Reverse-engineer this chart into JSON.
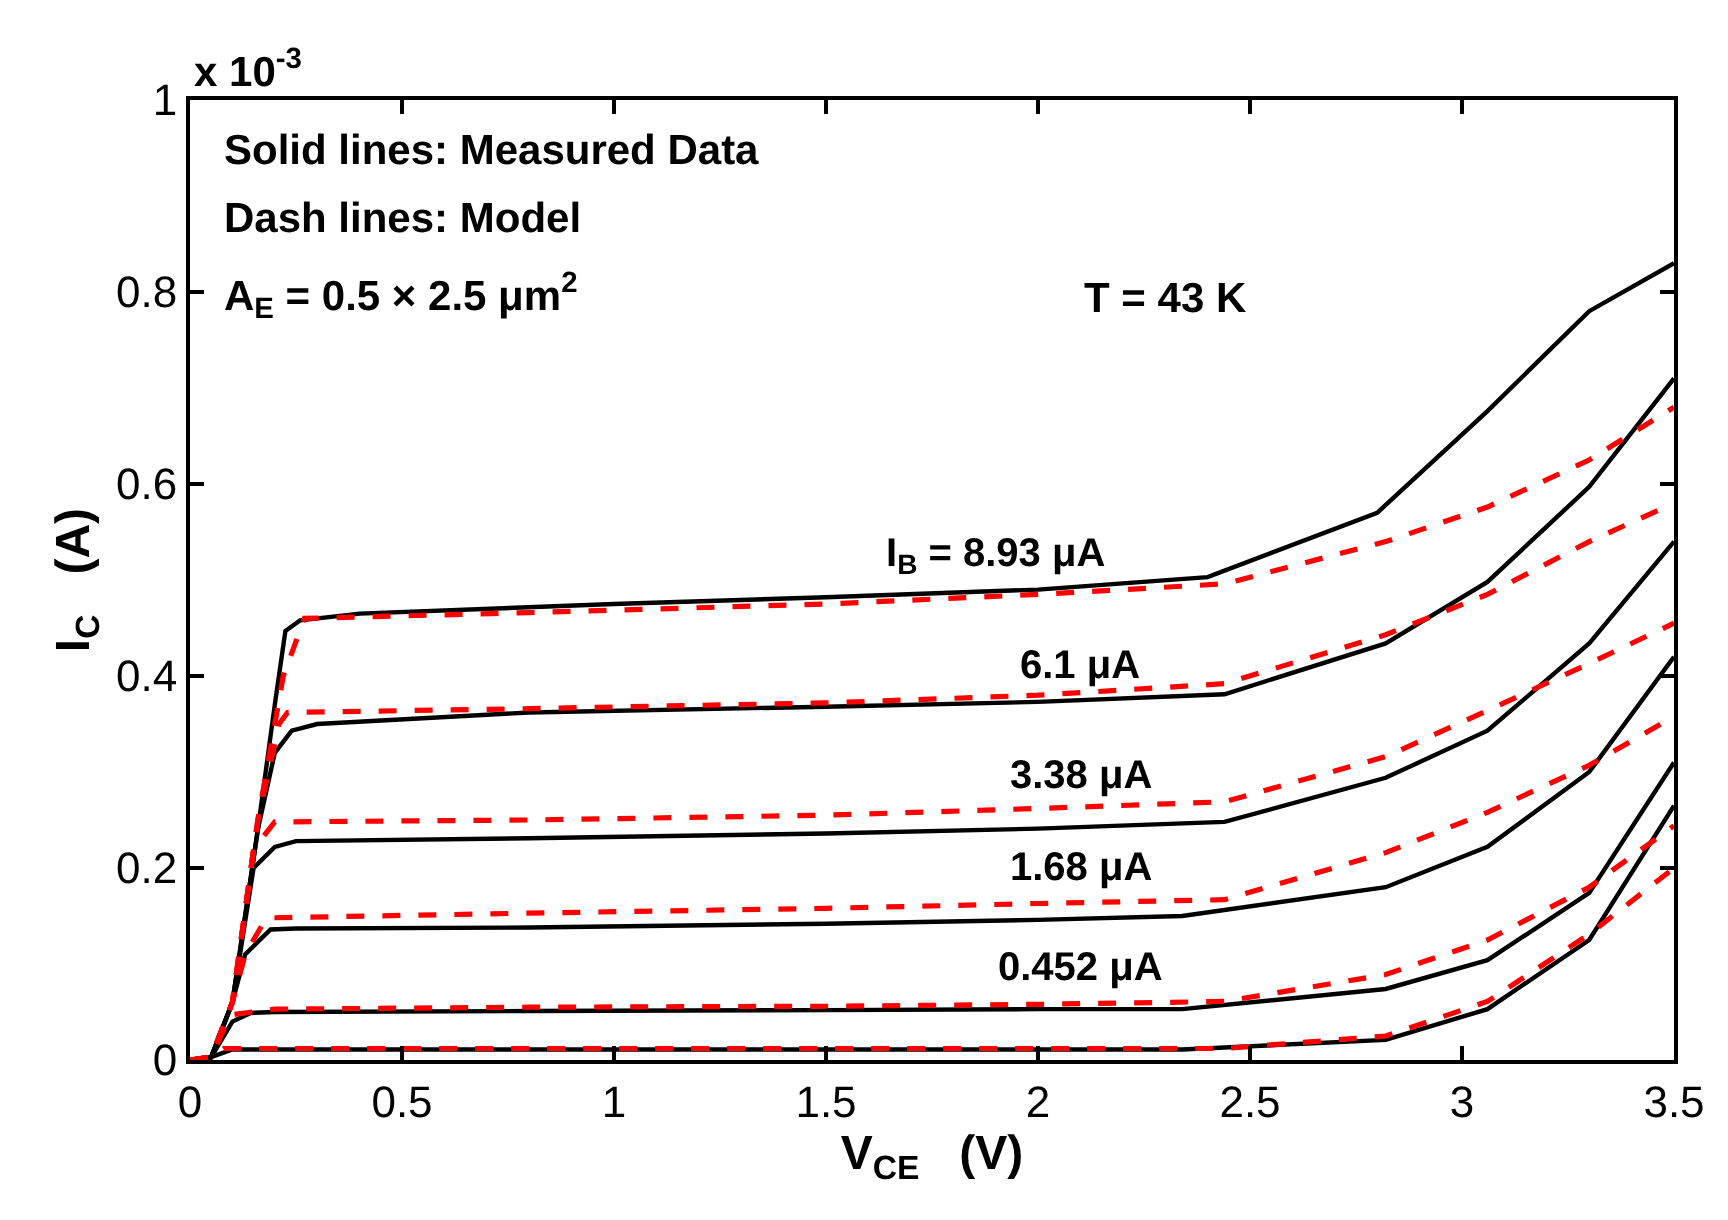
{
  "chart_data": {
    "type": "line",
    "xlabel": "V$_{CE}$   (V)",
    "ylabel": "I$_{C}$   (A)",
    "xlim": [
      0,
      3.5
    ],
    "xticks": [
      0,
      0.5,
      1,
      1.5,
      2,
      2.5,
      3,
      3.5
    ],
    "ylim": [
      0,
      1
    ],
    "yticks": [
      0,
      0.2,
      0.4,
      0.6,
      0.8,
      1
    ],
    "marker": "none",
    "series": [
      {
        "color": "#000000",
        "line_style": "solid",
        "x": [
          0,
          0.05,
          0.1,
          0.16,
          0.2,
          0.225,
          0.26,
          0.4,
          1,
          1.5,
          2,
          2.4,
          2.8,
          3.06,
          3.3,
          3.5
        ],
        "values": [
          0,
          0.003,
          0.06,
          0.24,
          0.37,
          0.447,
          0.458,
          0.465,
          0.475,
          0.482,
          0.49,
          0.503,
          0.57,
          0.676,
          0.78,
          0.83
        ]
      },
      {
        "color": "#000000",
        "line_style": "solid",
        "x": [
          0,
          0.05,
          0.1,
          0.16,
          0.2,
          0.24,
          0.3,
          0.8,
          1.5,
          2,
          2.44,
          2.82,
          3.06,
          3.3,
          3.5
        ],
        "values": [
          0,
          0.003,
          0.06,
          0.24,
          0.32,
          0.343,
          0.35,
          0.362,
          0.368,
          0.373,
          0.381,
          0.434,
          0.498,
          0.597,
          0.71
        ]
      },
      {
        "color": "#000000",
        "line_style": "solid",
        "x": [
          0,
          0.05,
          0.1,
          0.15,
          0.2,
          0.25,
          0.8,
          1.5,
          2,
          2.44,
          2.82,
          3.06,
          3.3,
          3.5
        ],
        "values": [
          0,
          0.003,
          0.06,
          0.2,
          0.222,
          0.228,
          0.231,
          0.236,
          0.241,
          0.248,
          0.294,
          0.343,
          0.434,
          0.54
        ]
      },
      {
        "color": "#000000",
        "line_style": "solid",
        "x": [
          0,
          0.05,
          0.1,
          0.13,
          0.19,
          0.25,
          0.8,
          1.5,
          2,
          2.34,
          2.82,
          3.06,
          3.3,
          3.5
        ],
        "values": [
          0,
          0.003,
          0.06,
          0.11,
          0.136,
          0.137,
          0.138,
          0.142,
          0.146,
          0.15,
          0.18,
          0.222,
          0.3,
          0.42
        ]
      },
      {
        "color": "#000000",
        "line_style": "solid",
        "x": [
          0,
          0.05,
          0.1,
          0.143,
          0.2,
          0.8,
          1.5,
          2,
          2.34,
          2.82,
          3.06,
          3.3,
          3.5
        ],
        "values": [
          0,
          0.003,
          0.04,
          0.049,
          0.05,
          0.051,
          0.052,
          0.053,
          0.053,
          0.074,
          0.104,
          0.174,
          0.31
        ]
      },
      {
        "color": "#000000",
        "line_style": "solid",
        "x": [
          0,
          0.05,
          0.1,
          0.15,
          0.8,
          1.5,
          2,
          2.34,
          2.82,
          3.06,
          3.3,
          3.5
        ],
        "values": [
          0,
          0.003,
          0.011,
          0.011,
          0.011,
          0.011,
          0.011,
          0.011,
          0.021,
          0.053,
          0.125,
          0.265
        ]
      },
      {
        "color": "#ff0000",
        "line_style": "dashed",
        "x": [
          0,
          0.05,
          0.1,
          0.16,
          0.22,
          0.27,
          0.8,
          1.5,
          2,
          2.44,
          2.82,
          3.06,
          3.3,
          3.5
        ],
        "values": [
          0,
          0.003,
          0.06,
          0.25,
          0.4,
          0.46,
          0.466,
          0.475,
          0.485,
          0.496,
          0.54,
          0.576,
          0.625,
          0.68
        ]
      },
      {
        "color": "#ff0000",
        "line_style": "dashed",
        "x": [
          0,
          0.05,
          0.1,
          0.16,
          0.21,
          0.23,
          0.8,
          1.5,
          2,
          2.44,
          2.82,
          3.06,
          3.3,
          3.5
        ],
        "values": [
          0,
          0.003,
          0.06,
          0.25,
          0.35,
          0.362,
          0.366,
          0.372,
          0.38,
          0.392,
          0.443,
          0.485,
          0.54,
          0.58
        ]
      },
      {
        "color": "#ff0000",
        "line_style": "dashed",
        "x": [
          0,
          0.05,
          0.1,
          0.15,
          0.2,
          0.8,
          1.5,
          2,
          2.44,
          2.82,
          3.06,
          3.3,
          3.5
        ],
        "values": [
          0,
          0.003,
          0.06,
          0.22,
          0.248,
          0.25,
          0.255,
          0.262,
          0.269,
          0.316,
          0.364,
          0.413,
          0.455
        ]
      },
      {
        "color": "#ff0000",
        "line_style": "dashed",
        "x": [
          0,
          0.05,
          0.1,
          0.13,
          0.18,
          0.8,
          1.5,
          2,
          2.44,
          2.82,
          3.06,
          3.3,
          3.5
        ],
        "values": [
          0,
          0.003,
          0.06,
          0.11,
          0.148,
          0.153,
          0.158,
          0.163,
          0.167,
          0.216,
          0.258,
          0.307,
          0.358
        ]
      },
      {
        "color": "#ff0000",
        "line_style": "dashed",
        "x": [
          0,
          0.05,
          0.095,
          0.2,
          0.8,
          1.5,
          2,
          2.44,
          2.82,
          3.06,
          3.3,
          3.5
        ],
        "values": [
          0,
          0.003,
          0.047,
          0.053,
          0.055,
          0.056,
          0.058,
          0.061,
          0.089,
          0.125,
          0.18,
          0.244
        ]
      },
      {
        "color": "#ff0000",
        "line_style": "dashed",
        "x": [
          0,
          0.05,
          0.08,
          0.8,
          1.5,
          2,
          2.44,
          2.82,
          3.06,
          3.3,
          3.5
        ],
        "values": [
          0,
          0.003,
          0.012,
          0.012,
          0.012,
          0.012,
          0.012,
          0.025,
          0.061,
          0.131,
          0.2
        ]
      }
    ],
    "annotations": [
      "x 10$^{-3}$",
      "Solid lines: Measured Data",
      "Dash lines: Model",
      "A$_{E}$ = 0.5 × 2.5 μm$^{2}$",
      "T = 43 K",
      "I$_{B}$ = 8.93 μA",
      "6.1 μA",
      "3.38 μA",
      "1.68 μA",
      "0.452 μA"
    ]
  }
}
